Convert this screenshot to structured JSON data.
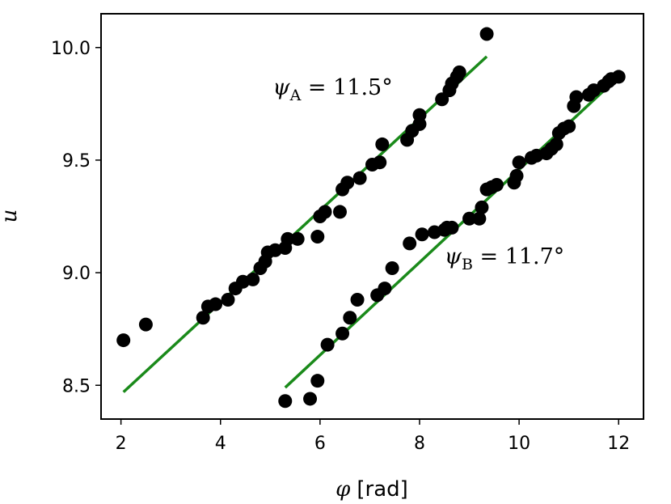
{
  "chart_data": {
    "type": "scatter",
    "title": "",
    "xlabel": {
      "symbol": "φ",
      "unit": "[rad]"
    },
    "ylabel": {
      "symbol": "u"
    },
    "xlim": [
      1.6,
      12.5
    ],
    "ylim": [
      8.35,
      10.15
    ],
    "xticks": [
      2,
      4,
      6,
      8,
      10,
      12
    ],
    "yticks": [
      8.5,
      9.0,
      9.5,
      10.0
    ],
    "xtick_labels": [
      "2",
      "4",
      "6",
      "8",
      "10",
      "12"
    ],
    "ytick_labels": [
      "8.5",
      "9.0",
      "9.5",
      "10.0"
    ],
    "grid": false,
    "legend": "none",
    "colors": {
      "points": "#000000",
      "fit": "#1a8a1a"
    },
    "series": [
      {
        "points": [
          [
            2.05,
            8.7
          ],
          [
            2.5,
            8.77
          ],
          [
            3.65,
            8.8
          ],
          [
            3.75,
            8.85
          ],
          [
            3.9,
            8.86
          ],
          [
            4.15,
            8.88
          ],
          [
            4.3,
            8.93
          ],
          [
            4.45,
            8.96
          ],
          [
            4.65,
            8.97
          ],
          [
            4.8,
            9.02
          ],
          [
            4.9,
            9.05
          ],
          [
            4.95,
            9.09
          ],
          [
            5.1,
            9.1
          ],
          [
            5.3,
            9.11
          ],
          [
            5.35,
            9.15
          ],
          [
            5.55,
            9.15
          ],
          [
            5.95,
            9.16
          ],
          [
            6.0,
            9.25
          ],
          [
            6.1,
            9.27
          ],
          [
            6.4,
            9.27
          ],
          [
            6.45,
            9.37
          ],
          [
            6.55,
            9.4
          ],
          [
            6.8,
            9.42
          ],
          [
            7.05,
            9.48
          ],
          [
            7.2,
            9.49
          ],
          [
            7.25,
            9.57
          ],
          [
            7.75,
            9.59
          ],
          [
            7.85,
            9.63
          ],
          [
            8.0,
            9.66
          ],
          [
            8.0,
            9.7
          ],
          [
            8.45,
            9.77
          ],
          [
            8.6,
            9.81
          ],
          [
            8.65,
            9.84
          ],
          [
            8.75,
            9.87
          ],
          [
            8.8,
            9.89
          ],
          [
            9.35,
            10.06
          ]
        ],
        "fit": {
          "x": [
            2.05,
            9.35
          ],
          "y": [
            8.47,
            9.96
          ]
        }
      },
      {
        "points": [
          [
            5.3,
            8.43
          ],
          [
            5.8,
            8.44
          ],
          [
            5.95,
            8.52
          ],
          [
            6.15,
            8.68
          ],
          [
            6.45,
            8.73
          ],
          [
            6.6,
            8.8
          ],
          [
            6.75,
            8.88
          ],
          [
            7.15,
            8.9
          ],
          [
            7.3,
            8.93
          ],
          [
            7.45,
            9.02
          ],
          [
            7.8,
            9.13
          ],
          [
            8.05,
            9.17
          ],
          [
            8.3,
            9.18
          ],
          [
            8.5,
            9.19
          ],
          [
            8.55,
            9.2
          ],
          [
            8.65,
            9.2
          ],
          [
            9.0,
            9.24
          ],
          [
            9.2,
            9.24
          ],
          [
            9.25,
            9.29
          ],
          [
            9.35,
            9.37
          ],
          [
            9.45,
            9.38
          ],
          [
            9.55,
            9.39
          ],
          [
            9.9,
            9.4
          ],
          [
            9.95,
            9.43
          ],
          [
            10.0,
            9.49
          ],
          [
            10.25,
            9.51
          ],
          [
            10.35,
            9.52
          ],
          [
            10.55,
            9.53
          ],
          [
            10.65,
            9.55
          ],
          [
            10.75,
            9.57
          ],
          [
            10.8,
            9.62
          ],
          [
            10.9,
            9.64
          ],
          [
            11.0,
            9.65
          ],
          [
            11.1,
            9.74
          ],
          [
            11.15,
            9.78
          ],
          [
            11.4,
            9.79
          ],
          [
            11.5,
            9.81
          ],
          [
            11.7,
            9.83
          ],
          [
            11.8,
            9.85
          ],
          [
            11.85,
            9.86
          ],
          [
            12.0,
            9.87
          ]
        ],
        "fit": {
          "x": [
            5.3,
            12.0
          ],
          "y": [
            8.49,
            9.87
          ]
        }
      }
    ],
    "annotations": [
      {
        "symbol": "ψ",
        "subscript": "A",
        "text": " = 11.5°",
        "x": 5.05,
        "y": 9.79
      },
      {
        "symbol": "ψ",
        "subscript": "B",
        "text": " = 11.7°",
        "x": 8.5,
        "y": 9.04
      }
    ]
  }
}
